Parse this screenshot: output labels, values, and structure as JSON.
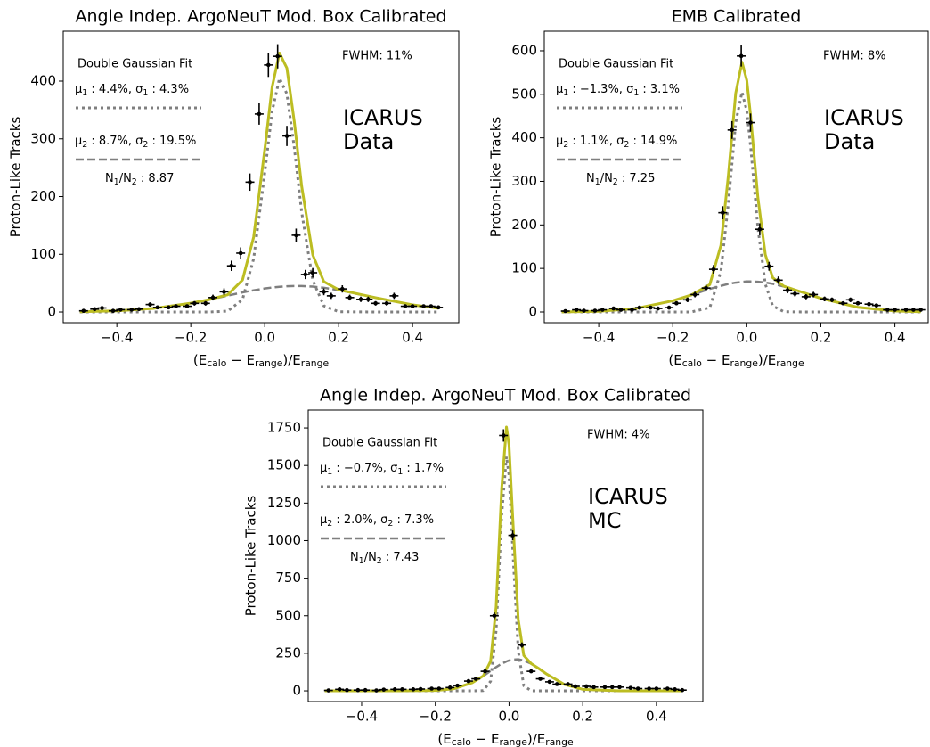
{
  "chart_data": [
    {
      "type": "line",
      "title": "Angle Indep. ArgoNeuT Mod. Box Calibrated",
      "xlabel": [
        "(E",
        "calo",
        " − E",
        "range",
        ")/E",
        "range"
      ],
      "ylabel": "Proton-Like Tracks",
      "xlim": [
        -0.545,
        0.525
      ],
      "ylim": [
        -18.5,
        486.5
      ],
      "xticks": [
        {
          "value": -0.4,
          "label": "−0.4"
        },
        {
          "value": -0.2,
          "label": "−0.2"
        },
        {
          "value": 0,
          "label": "0.0"
        },
        0.2,
        0.4
      ],
      "yticks": [
        0,
        100,
        200,
        300,
        400
      ],
      "legend_title": "Double Gaussian Fit",
      "ratio_label": [
        "N",
        "1",
        "/N",
        "2",
        " : 8.87"
      ],
      "annotation": "FWHM: 11%",
      "label": [
        "ICARUS",
        "Data"
      ],
      "x": [
        -0.5,
        -0.4,
        -0.3,
        -0.2,
        -0.15,
        -0.1,
        -0.06,
        -0.03,
        0,
        0.02,
        0.04,
        0.06,
        0.08,
        0.1,
        0.13,
        0.16,
        0.2,
        0.3,
        0.4,
        0.47
      ],
      "series": [
        {
          "color": "#bcbd22",
          "style": "solid",
          "values": [
            0.5,
            2,
            6.3,
            15.3,
            21.5,
            29.9,
            55.6,
            129.6,
            280.7,
            389.4,
            448.7,
            422.6,
            330,
            218,
            99,
            52.6,
            38.5,
            24.8,
            12.4,
            6.5
          ]
        },
        {
          "name": [
            "μ",
            "1",
            " : 4.4%, σ",
            "1",
            " : 4.3%"
          ],
          "color": "#7f7f7f",
          "style": "dotted",
          "values": [
            0,
            0,
            0,
            0,
            0,
            1.5,
            21.7,
            92,
            240,
            347,
            405,
            378,
            285,
            173,
            55,
            10.6,
            0.5,
            0,
            0,
            0
          ]
        },
        {
          "name": [
            "μ",
            "2",
            " : 8.7%, σ",
            "2",
            " : 19.5%"
          ],
          "color": "#7f7f7f",
          "style": "dashed",
          "values": [
            0.5,
            2,
            6.3,
            15.3,
            21.5,
            28.4,
            33.9,
            37.6,
            40.7,
            42.4,
            43.7,
            44.6,
            45,
            45,
            44,
            42,
            38,
            24.8,
            12.4,
            6.5
          ]
        }
      ],
      "points": {
        "color": "#000000",
        "xerr": 0.012,
        "x": [
          -0.49,
          -0.46,
          -0.44,
          -0.41,
          -0.39,
          -0.36,
          -0.34,
          -0.31,
          -0.29,
          -0.26,
          -0.24,
          -0.21,
          -0.19,
          -0.16,
          -0.14,
          -0.11,
          -0.09,
          -0.065,
          -0.04,
          -0.015,
          0.01,
          0.035,
          0.06,
          0.085,
          0.11,
          0.13,
          0.16,
          0.18,
          0.21,
          0.23,
          0.26,
          0.28,
          0.3,
          0.33,
          0.35,
          0.38,
          0.4,
          0.43,
          0.45,
          0.47
        ],
        "values": [
          2,
          5,
          7,
          2,
          4,
          4,
          5,
          13,
          8,
          8,
          10,
          10,
          15,
          15,
          25,
          35,
          80,
          102,
          225,
          343,
          428,
          443,
          305,
          133,
          65,
          68,
          35,
          28,
          40,
          25,
          22,
          22,
          15,
          15,
          28,
          10,
          10,
          10,
          10,
          8
        ],
        "yerr": [
          1.4,
          2.2,
          2.6,
          1.4,
          2,
          2,
          2.2,
          3.6,
          2.8,
          2.8,
          3.2,
          3.2,
          3.9,
          3.9,
          5,
          5.9,
          8.9,
          10,
          15,
          18.5,
          20.7,
          21,
          17.5,
          11.5,
          8,
          8.2,
          5.9,
          5.3,
          6.3,
          5,
          4.7,
          4.7,
          3.9,
          3.9,
          5.3,
          3.2,
          3.2,
          3.2,
          3.2,
          2.8
        ]
      }
    },
    {
      "type": "line",
      "title": "EMB Calibrated",
      "xlabel": [
        "(E",
        "calo",
        " − E",
        "range",
        ")/E",
        "range"
      ],
      "ylabel": "Proton-Like Tracks",
      "xlim": [
        -0.547,
        0.49
      ],
      "ylim": [
        -24.6,
        645
      ],
      "xticks": [
        {
          "value": -0.4,
          "label": "−0.4"
        },
        {
          "value": -0.2,
          "label": "−0.2"
        },
        {
          "value": 0,
          "label": "0.0"
        },
        0.2,
        0.4
      ],
      "yticks": [
        0,
        100,
        200,
        300,
        400,
        500,
        600
      ],
      "legend_title": "Double Gaussian Fit",
      "ratio_label": [
        "N",
        "1",
        "/N",
        "2",
        " : 7.25"
      ],
      "annotation": "FWHM: 8%",
      "label": [
        "ICARUS",
        "Data"
      ],
      "x": [
        -0.5,
        -0.4,
        -0.3,
        -0.2,
        -0.15,
        -0.1,
        -0.07,
        -0.05,
        -0.03,
        -0.013,
        0,
        0.01,
        0.03,
        0.05,
        0.07,
        0.1,
        0.15,
        0.2,
        0.3,
        0.4,
        0.47
      ],
      "series": [
        {
          "color": "#bcbd22",
          "style": "solid",
          "values": [
            0.2,
            1.6,
            7.9,
            25.7,
            39,
            62.8,
            153,
            312.4,
            502.4,
            574,
            532,
            453,
            262.4,
            131.6,
            78.7,
            59.2,
            45.3,
            31.3,
            10.7,
            2.3,
            0.6
          ]
        },
        {
          "name": [
            "μ",
            "1",
            " : −1.3%, σ",
            "1",
            " : 3.1%"
          ],
          "color": "#7f7f7f",
          "style": "dotted",
          "values": [
            0,
            0,
            0,
            0,
            0,
            9.8,
            93,
            248,
            435,
            505,
            462,
            383,
            193,
            64,
            14,
            0.6,
            0,
            0,
            0,
            0,
            0
          ]
        },
        {
          "name": [
            "μ",
            "2",
            " : 1.1%, σ",
            "2",
            " : 14.9%"
          ],
          "color": "#7f7f7f",
          "style": "dashed",
          "values": [
            0.2,
            1.6,
            7.9,
            25.7,
            39,
            53,
            60,
            64.4,
            67.4,
            69,
            70,
            70,
            69.4,
            67.6,
            64.7,
            58.6,
            45.3,
            31.3,
            10.7,
            2.3,
            0.6
          ]
        }
      ],
      "points": {
        "color": "#000000",
        "xerr": 0.012,
        "x": [
          -0.49,
          -0.46,
          -0.44,
          -0.41,
          -0.39,
          -0.36,
          -0.34,
          -0.31,
          -0.29,
          -0.26,
          -0.24,
          -0.21,
          -0.19,
          -0.16,
          -0.14,
          -0.11,
          -0.09,
          -0.065,
          -0.04,
          -0.015,
          0.01,
          0.035,
          0.06,
          0.085,
          0.11,
          0.13,
          0.16,
          0.18,
          0.21,
          0.23,
          0.26,
          0.28,
          0.3,
          0.33,
          0.35,
          0.38,
          0.4,
          0.43,
          0.45,
          0.47
        ],
        "values": [
          2,
          5,
          3,
          3,
          5,
          8,
          5,
          5,
          10,
          10,
          8,
          10,
          20,
          28,
          40,
          55,
          98,
          228,
          418,
          588,
          435,
          190,
          105,
          73,
          50,
          42,
          35,
          40,
          30,
          28,
          20,
          28,
          20,
          18,
          15,
          5,
          5,
          5,
          5,
          5
        ],
        "yerr": [
          1.4,
          2.2,
          1.7,
          1.7,
          2.2,
          2.8,
          2.2,
          2.2,
          3.2,
          3.2,
          2.8,
          3.2,
          4.5,
          5.3,
          6.3,
          7.4,
          9.9,
          15,
          20.4,
          24.2,
          20.9,
          13.8,
          10.2,
          8.5,
          7.1,
          6.5,
          5.9,
          6.3,
          5.5,
          5.3,
          4.5,
          5.3,
          4.5,
          4.2,
          3.9,
          2.2,
          2.2,
          2.2,
          2.2,
          2.2
        ]
      }
    },
    {
      "type": "line",
      "title": "Angle Indep. ArgoNeuT Mod. Box Calibrated",
      "xlabel": [
        "(E",
        "calo",
        " − E",
        "range",
        ")/E",
        "range"
      ],
      "ylabel": "Proton-Like Tracks",
      "xlim": [
        -0.545,
        0.526
      ],
      "ylim": [
        -71,
        1869
      ],
      "xticks": [
        {
          "value": -0.4,
          "label": "−0.4"
        },
        {
          "value": -0.2,
          "label": "−0.2"
        },
        {
          "value": 0,
          "label": "0.0"
        },
        0.2,
        0.4
      ],
      "yticks": [
        0,
        250,
        500,
        750,
        1000,
        1250,
        1500,
        1750
      ],
      "legend_title": "Double Gaussian Fit",
      "ratio_label": [
        "N",
        "1",
        "/N",
        "2",
        " : 7.43"
      ],
      "annotation": "FWHM: 4%",
      "label": [
        "ICARUS",
        "MC"
      ],
      "x": [
        -0.5,
        -0.3,
        -0.2,
        -0.15,
        -0.1,
        -0.07,
        -0.05,
        -0.035,
        -0.02,
        -0.007,
        0,
        0.01,
        0.025,
        0.04,
        0.06,
        0.08,
        0.1,
        0.15,
        0.2,
        0.3,
        0.47
      ],
      "series": [
        {
          "color": "#bcbd22",
          "style": "solid",
          "values": [
            0,
            0,
            2.2,
            14,
            54,
            99.6,
            197,
            560,
            1346,
            1756,
            1636,
            1154,
            476,
            236,
            181.7,
            150,
            115,
            43,
            10,
            0.1,
            0
          ]
        },
        {
          "name": [
            "μ",
            "1",
            " : −0.7%, σ",
            "1",
            " : 1.7%"
          ],
          "color": "#7f7f7f",
          "style": "dotted",
          "values": [
            0,
            0,
            0,
            0,
            0,
            1.6,
            64,
            402,
            1165,
            1560,
            1434,
            946,
            266,
            34,
            0.7,
            0,
            0,
            0,
            0,
            0,
            0
          ]
        },
        {
          "name": [
            "μ",
            "2",
            " : 2.0%, σ",
            "2",
            " : 7.3%"
          ],
          "color": "#7f7f7f",
          "style": "dashed",
          "values": [
            0,
            0,
            2.2,
            14,
            54,
            98,
            133,
            158,
            181,
            196,
            202,
            208,
            210,
            202,
            181,
            150,
            115,
            43,
            10,
            0.1,
            0
          ]
        }
      ],
      "points": {
        "color": "#000000",
        "xerr": 0.012,
        "x": [
          -0.49,
          -0.46,
          -0.44,
          -0.41,
          -0.39,
          -0.36,
          -0.34,
          -0.31,
          -0.29,
          -0.26,
          -0.24,
          -0.21,
          -0.19,
          -0.16,
          -0.14,
          -0.11,
          -0.09,
          -0.065,
          -0.04,
          -0.015,
          0.01,
          0.035,
          0.06,
          0.085,
          0.11,
          0.13,
          0.16,
          0.18,
          0.21,
          0.23,
          0.26,
          0.28,
          0.3,
          0.33,
          0.35,
          0.38,
          0.4,
          0.43,
          0.45,
          0.47
        ],
        "values": [
          3,
          10,
          5,
          5,
          5,
          3,
          8,
          10,
          10,
          10,
          12,
          15,
          15,
          22,
          35,
          65,
          80,
          130,
          500,
          1700,
          1035,
          305,
          130,
          80,
          60,
          45,
          45,
          30,
          30,
          25,
          25,
          25,
          25,
          20,
          15,
          15,
          15,
          15,
          10,
          5
        ],
        "yerr": [
          1.7,
          3.2,
          2.2,
          2.2,
          2.2,
          1.7,
          2.8,
          3.2,
          3.2,
          3.2,
          3.5,
          3.9,
          3.9,
          4.7,
          5.9,
          8.1,
          8.9,
          11.4,
          22.4,
          41.2,
          32.2,
          17.5,
          11.4,
          8.9,
          7.7,
          6.7,
          6.7,
          5.5,
          5.5,
          5,
          5,
          5,
          5,
          4.5,
          3.9,
          3.9,
          3.9,
          3.9,
          3.2,
          2.2
        ]
      }
    }
  ]
}
